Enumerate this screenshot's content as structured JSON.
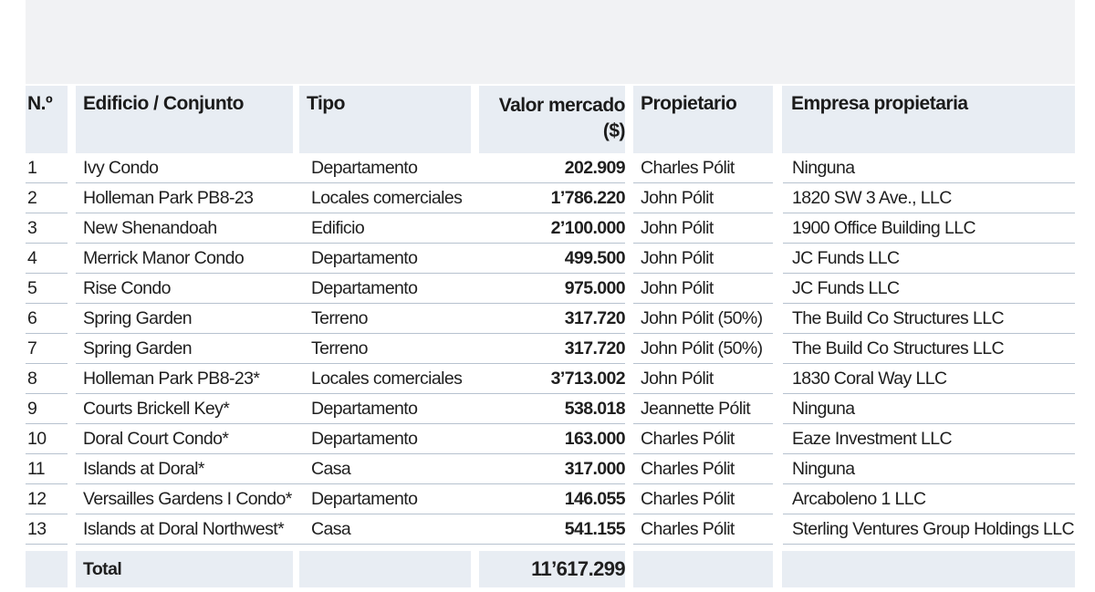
{
  "table": {
    "headers": {
      "num": "N.º",
      "building": "Edificio / Conjunto",
      "type": "Tipo",
      "value": "Valor mercado ($)",
      "owner": "Propietario",
      "company": "Empresa propietaria"
    },
    "rows": [
      {
        "num": "1",
        "building": "Ivy Condo",
        "type": "Departamento",
        "value": "202.909",
        "owner": "Charles Pólit",
        "company": "Ninguna"
      },
      {
        "num": "2",
        "building": "Holleman Park PB8-23",
        "type": "Locales comerciales",
        "value": "1’786.220",
        "owner": "John Pólit",
        "company": "1820 SW 3 Ave., LLC"
      },
      {
        "num": "3",
        "building": "New Shenandoah",
        "type": "Edificio",
        "value": "2’100.000",
        "owner": "John Pólit",
        "company": "1900 Office Building LLC"
      },
      {
        "num": "4",
        "building": "Merrick Manor Condo",
        "type": "Departamento",
        "value": "499.500",
        "owner": "John Pólit",
        "company": "JC Funds LLC"
      },
      {
        "num": "5",
        "building": "Rise Condo",
        "type": "Departamento",
        "value": "975.000",
        "owner": "John Pólit",
        "company": "JC Funds LLC"
      },
      {
        "num": "6",
        "building": "Spring Garden",
        "type": "Terreno",
        "value": "317.720",
        "owner": "John Pólit (50%)",
        "company": "The Build Co Structures LLC"
      },
      {
        "num": "7",
        "building": "Spring Garden",
        "type": "Terreno",
        "value": "317.720",
        "owner": "John Pólit (50%)",
        "company": "The Build Co Structures LLC"
      },
      {
        "num": "8",
        "building": "Holleman Park PB8-23*",
        "type": "Locales comerciales",
        "value": "3’713.002",
        "owner": "John Pólit",
        "company": "1830 Coral Way LLC"
      },
      {
        "num": "9",
        "building": "Courts Brickell Key*",
        "type": "Departamento",
        "value": "538.018",
        "owner": "Jeannette Pólit",
        "company": "Ninguna"
      },
      {
        "num": "10",
        "building": "Doral Court Condo*",
        "type": "Departamento",
        "value": "163.000",
        "owner": "Charles Pólit",
        "company": "Eaze Investment LLC"
      },
      {
        "num": "11",
        "building": "Islands at Doral*",
        "type": "Casa",
        "value": "317.000",
        "owner": "Charles Pólit",
        "company": "Ninguna"
      },
      {
        "num": "12",
        "building": "Versailles Gardens I Condo*",
        "type": "Departamento",
        "value": "146.055",
        "owner": "Charles Pólit",
        "company": "Arcaboleno 1 LLC"
      },
      {
        "num": "13",
        "building": "Islands at Doral Northwest*",
        "type": "Casa",
        "value": "541.155",
        "owner": "Charles Pólit",
        "company": "Sterling Ventures Group Holdings LLC"
      }
    ],
    "total": {
      "label": "Total",
      "value": "11’617.299"
    }
  },
  "colors": {
    "header_bg": "#e8edf3",
    "top_band_bg": "#f1f2f4",
    "row_divider": "#b7c2cf",
    "text": "#1f1f1f"
  }
}
